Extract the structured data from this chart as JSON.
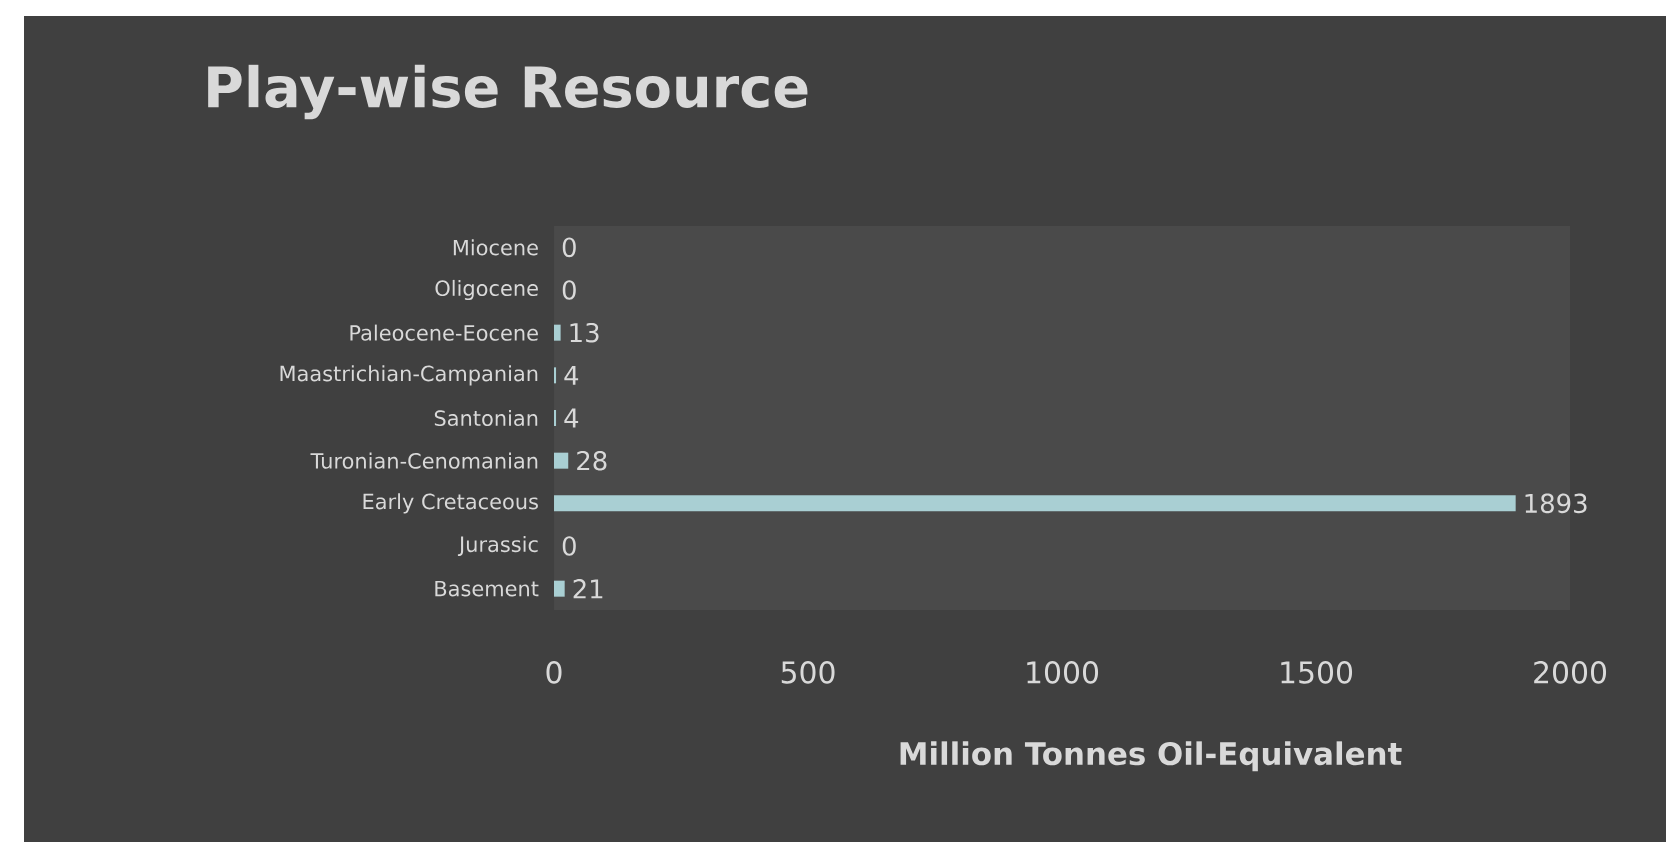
{
  "chart_data": {
    "type": "bar",
    "orientation": "horizontal",
    "title": "Play-wise Resource",
    "xlabel": "Million Tonnes Oil-Equivalent",
    "categories": [
      "Miocene",
      "Oligocene",
      "Paleocene-Eocene",
      "Maastrichian-Campanian",
      "Santonian",
      "Turonian-Cenomanian",
      "Early Cretaceous",
      "Jurassic",
      "Basement"
    ],
    "values": [
      0,
      0,
      13,
      4,
      4,
      28,
      1893,
      0,
      21
    ],
    "color": "#a9cfd3",
    "xlim": [
      0,
      2000
    ],
    "xticks": [
      0,
      500,
      1000,
      1500,
      2000
    ],
    "data_labels": true,
    "grid": false
  }
}
